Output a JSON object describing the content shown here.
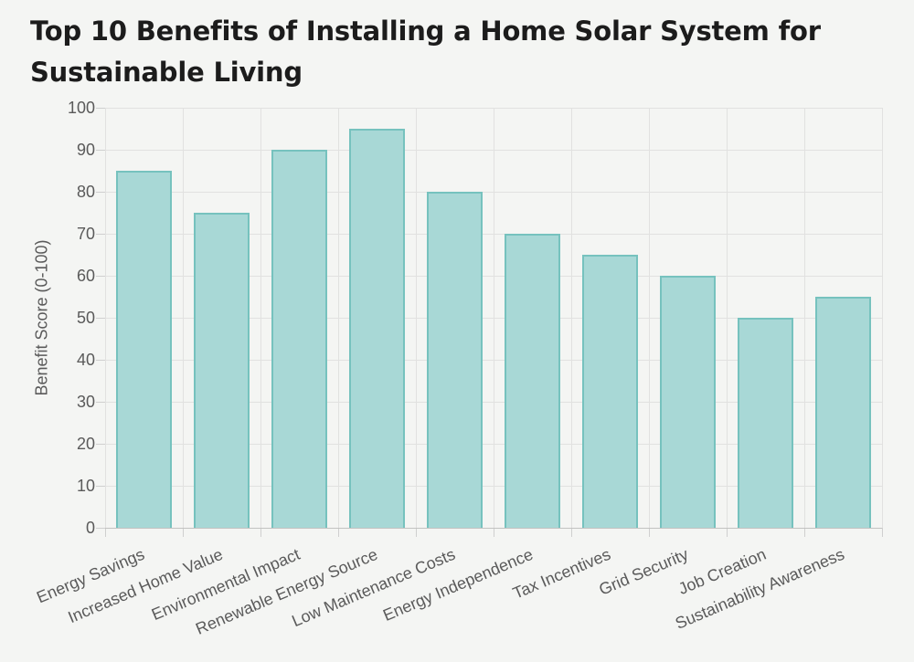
{
  "title": {
    "line1": "Top 10 Benefits of Installing a Home Solar System for",
    "line2": "Sustainable Living"
  },
  "chart_data": {
    "type": "bar",
    "title": "Top 10 Benefits of Installing a Home Solar System for Sustainable Living",
    "categories": [
      "Energy Savings",
      "Increased Home Value",
      "Environmental Impact",
      "Renewable Energy Source",
      "Low Maintenance Costs",
      "Energy Independence",
      "Tax Incentives",
      "Grid Security",
      "Job Creation",
      "Sustainability Awareness"
    ],
    "values": [
      85,
      75,
      90,
      95,
      80,
      70,
      65,
      60,
      50,
      55
    ],
    "xlabel": "",
    "ylabel": "Benefit Score (0-100)",
    "ylim": [
      0,
      100
    ],
    "ytick_step": 10,
    "grid": true,
    "legend_position": "none",
    "colors": {
      "bar_fill": "#a8d8d6",
      "bar_border": "#76c2be",
      "background": "#f4f5f3",
      "grid": "#e1e1e0",
      "tick_text": "#5a5a5a",
      "title_text": "#1c1c1c"
    }
  }
}
